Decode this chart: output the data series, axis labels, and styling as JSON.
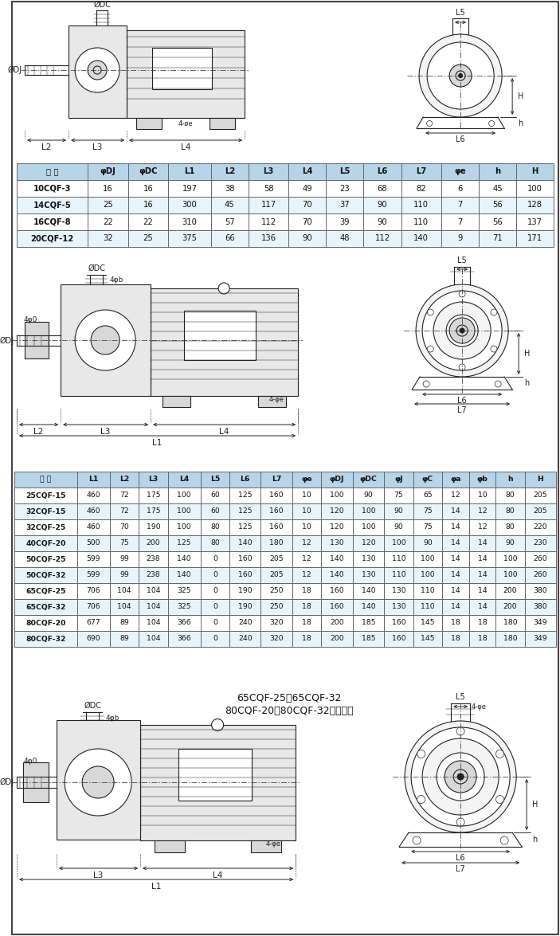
{
  "table1_headers": [
    "型 号",
    "φDJ",
    "φDC",
    "L1",
    "L2",
    "L3",
    "L4",
    "L5",
    "L6",
    "L7",
    "φe",
    "h",
    "H"
  ],
  "table1_rows": [
    [
      "10CQF-3",
      "16",
      "16",
      "197",
      "38",
      "58",
      "49",
      "23",
      "68",
      "82",
      "6",
      "45",
      "100"
    ],
    [
      "14CQF-5",
      "25",
      "16",
      "300",
      "45",
      "117",
      "70",
      "37",
      "90",
      "110",
      "7",
      "56",
      "128"
    ],
    [
      "16CQF-8",
      "22",
      "22",
      "310",
      "57",
      "112",
      "70",
      "39",
      "90",
      "110",
      "7",
      "56",
      "137"
    ],
    [
      "20CQF-12",
      "32",
      "25",
      "375",
      "66",
      "136",
      "90",
      "48",
      "112",
      "140",
      "9",
      "71",
      "171"
    ]
  ],
  "table2_headers": [
    "型 号",
    "L1",
    "L2",
    "L3",
    "L4",
    "L5",
    "L6",
    "L7",
    "φe",
    "φDJ",
    "φDC",
    "φJ",
    "φC",
    "φa",
    "φb",
    "h",
    "H"
  ],
  "table2_rows": [
    [
      "25CQF-15",
      "460",
      "72",
      "175",
      "100",
      "60",
      "125",
      "160",
      "10",
      "100",
      "90",
      "75",
      "65",
      "12",
      "10",
      "80",
      "205"
    ],
    [
      "32CQF-15",
      "460",
      "72",
      "175",
      "100",
      "60",
      "125",
      "160",
      "10",
      "120",
      "100",
      "90",
      "75",
      "14",
      "12",
      "80",
      "205"
    ],
    [
      "32CQF-25",
      "460",
      "70",
      "190",
      "100",
      "80",
      "125",
      "160",
      "10",
      "120",
      "100",
      "90",
      "75",
      "14",
      "12",
      "80",
      "220"
    ],
    [
      "40CQF-20",
      "500",
      "75",
      "200",
      "125",
      "80",
      "140",
      "180",
      "12",
      "130",
      "120",
      "100",
      "90",
      "14",
      "14",
      "90",
      "230"
    ],
    [
      "50CQF-25",
      "599",
      "99",
      "238",
      "140",
      "0",
      "160",
      "205",
      "12",
      "140",
      "130",
      "110",
      "100",
      "14",
      "14",
      "100",
      "260"
    ],
    [
      "50CQF-32",
      "599",
      "99",
      "238",
      "140",
      "0",
      "160",
      "205",
      "12",
      "140",
      "130",
      "110",
      "100",
      "14",
      "14",
      "100",
      "260"
    ],
    [
      "65CQF-25",
      "706",
      "104",
      "104",
      "325",
      "0",
      "190",
      "250",
      "18",
      "160",
      "140",
      "130",
      "110",
      "14",
      "14",
      "200",
      "380"
    ],
    [
      "65CQF-32",
      "706",
      "104",
      "104",
      "325",
      "0",
      "190",
      "250",
      "18",
      "160",
      "140",
      "130",
      "110",
      "14",
      "14",
      "200",
      "380"
    ],
    [
      "80CQF-20",
      "677",
      "89",
      "104",
      "366",
      "0",
      "240",
      "320",
      "18",
      "200",
      "185",
      "160",
      "145",
      "18",
      "18",
      "180",
      "349"
    ],
    [
      "80CQF-32",
      "690",
      "89",
      "104",
      "366",
      "0",
      "240",
      "320",
      "18",
      "200",
      "185",
      "160",
      "145",
      "18",
      "18",
      "180",
      "349"
    ]
  ],
  "note_line1": "65CQF-25、65CQF-32",
  "note_line2": "80CQF-20、80CQF-32按照此图",
  "header_bg": "#b8d4e8",
  "row_bg_odd": "#ffffff",
  "row_bg_even": "#e8f4fb",
  "table_border": "#666666"
}
